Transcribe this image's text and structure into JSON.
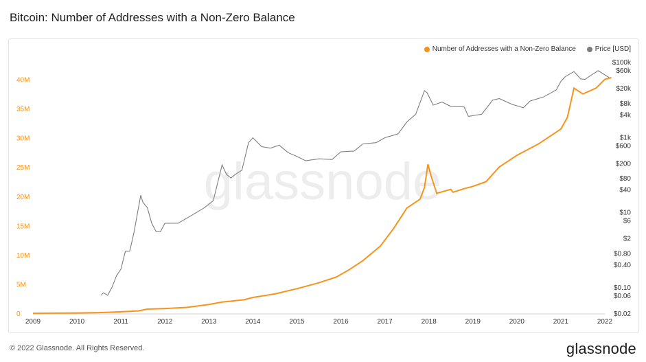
{
  "title": "Bitcoin: Number of Addresses with a Non-Zero Balance",
  "footer": "© 2022 Glassnode. All Rights Reserved.",
  "brand": "glassnode",
  "watermark": "glassnode",
  "colors": {
    "addresses": "#f7931a",
    "price": "#7d7d7d",
    "left_axis": "#f7931a"
  },
  "chart_data": {
    "type": "line",
    "title": "Bitcoin: Number of Addresses with a Non-Zero Balance",
    "legend": [
      "Number of Addresses with a Non-Zero Balance",
      "Price [USD]"
    ],
    "legend_position": "top-right",
    "x_ticks": [
      "2009",
      "2010",
      "2011",
      "2012",
      "2013",
      "2014",
      "2015",
      "2016",
      "2017",
      "2018",
      "2019",
      "2020",
      "2021",
      "2022"
    ],
    "y_left_ticks": [
      "0",
      "5M",
      "10M",
      "15M",
      "20M",
      "25M",
      "30M",
      "35M",
      "40M"
    ],
    "y_left_values": [
      0,
      5,
      10,
      15,
      20,
      25,
      30,
      35,
      40
    ],
    "y_left_range": [
      0,
      43
    ],
    "y_right_ticks": [
      "$0.02",
      "$0.06",
      "$0.10",
      "$0.40",
      "$0.80",
      "$2",
      "$6",
      "$10",
      "$40",
      "$80",
      "$200",
      "$600",
      "$1k",
      "$4k",
      "$8k",
      "$20k",
      "$60k",
      "$100k"
    ],
    "y_right_values": [
      0.02,
      0.06,
      0.1,
      0.4,
      0.8,
      2,
      6,
      10,
      40,
      80,
      200,
      600,
      1000,
      4000,
      8000,
      20000,
      60000,
      100000
    ],
    "y_right_range": [
      0.02,
      100000
    ],
    "series": [
      {
        "name": "Number of Addresses with a Non-Zero Balance",
        "unit": "millions",
        "x": [
          2009.0,
          2010.0,
          2010.5,
          2011.0,
          2011.4,
          2011.6,
          2012.0,
          2012.5,
          2013.0,
          2013.3,
          2013.8,
          2014.0,
          2014.5,
          2015.0,
          2015.5,
          2015.9,
          2016.2,
          2016.5,
          2016.9,
          2017.2,
          2017.5,
          2017.8,
          2017.9,
          2017.98,
          2018.05,
          2018.18,
          2018.5,
          2018.55,
          2018.8,
          2019.0,
          2019.3,
          2019.6,
          2020.0,
          2020.5,
          2021.0,
          2021.15,
          2021.3,
          2021.5,
          2021.8,
          2022.0,
          2022.15
        ],
        "values": [
          0,
          0.05,
          0.1,
          0.25,
          0.4,
          0.7,
          0.8,
          1.0,
          1.5,
          1.9,
          2.3,
          2.7,
          3.3,
          4.2,
          5.2,
          6.2,
          7.5,
          9.0,
          11.5,
          14.5,
          18.0,
          19.5,
          21.5,
          25.5,
          23.5,
          20.5,
          21.2,
          20.7,
          21.3,
          21.7,
          22.5,
          25.0,
          27.0,
          29.0,
          31.5,
          33.5,
          38.5,
          37.5,
          38.5,
          40.0,
          40.3
        ]
      },
      {
        "name": "Price [USD]",
        "unit": "USD",
        "x": [
          2010.55,
          2010.6,
          2010.7,
          2010.8,
          2010.9,
          2011.0,
          2011.1,
          2011.2,
          2011.3,
          2011.45,
          2011.5,
          2011.6,
          2011.7,
          2011.8,
          2011.9,
          2012.0,
          2012.3,
          2012.6,
          2012.9,
          2013.1,
          2013.2,
          2013.3,
          2013.4,
          2013.5,
          2013.6,
          2013.75,
          2013.9,
          2014.0,
          2014.2,
          2014.4,
          2014.6,
          2014.8,
          2015.0,
          2015.2,
          2015.5,
          2015.8,
          2016.0,
          2016.3,
          2016.5,
          2016.8,
          2017.0,
          2017.3,
          2017.5,
          2017.7,
          2017.9,
          2017.96,
          2018.1,
          2018.3,
          2018.5,
          2018.8,
          2018.9,
          2019.0,
          2019.2,
          2019.45,
          2019.6,
          2019.9,
          2020.15,
          2020.3,
          2020.6,
          2020.9,
          2021.0,
          2021.1,
          2021.3,
          2021.45,
          2021.55,
          2021.7,
          2021.85,
          2022.0,
          2022.1
        ],
        "values": [
          0.06,
          0.07,
          0.06,
          0.1,
          0.2,
          0.3,
          0.9,
          0.9,
          3,
          28,
          18,
          13,
          5,
          3,
          3,
          5,
          5,
          8,
          13,
          20,
          60,
          180,
          100,
          80,
          100,
          130,
          700,
          950,
          550,
          500,
          600,
          380,
          300,
          230,
          260,
          250,
          400,
          420,
          650,
          700,
          950,
          1200,
          2500,
          4000,
          17000,
          15000,
          7000,
          8500,
          6500,
          6300,
          3500,
          3700,
          4000,
          9500,
          10500,
          7300,
          6000,
          9000,
          11500,
          18000,
          30000,
          40000,
          55000,
          35000,
          34000,
          45000,
          58000,
          45000,
          38000
        ]
      }
    ]
  }
}
